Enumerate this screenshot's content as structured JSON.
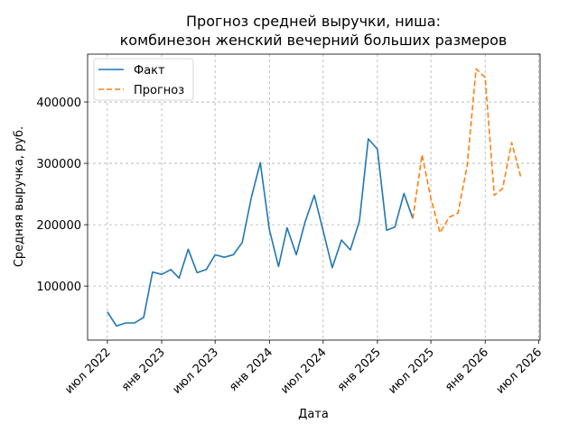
{
  "chart_data": {
    "type": "line",
    "title_line1": "Прогноз средней выручки, ниша:",
    "title_line2": "комбинезон женский вечерний больших размеров",
    "xlabel": "Дата",
    "ylabel": "Средняя выручка, руб.",
    "grid": true,
    "legend_position": "top-left",
    "x_ticks": [
      {
        "date": "2022-07-01",
        "label": "июл 2022"
      },
      {
        "date": "2023-01-01",
        "label": "янв 2023"
      },
      {
        "date": "2023-07-01",
        "label": "июл 2023"
      },
      {
        "date": "2024-01-01",
        "label": "янв 2024"
      },
      {
        "date": "2024-07-01",
        "label": "июл 2024"
      },
      {
        "date": "2025-01-01",
        "label": "янв 2025"
      },
      {
        "date": "2025-07-01",
        "label": "июл 2025"
      },
      {
        "date": "2026-01-01",
        "label": "янв 2026"
      },
      {
        "date": "2026-07-01",
        "label": "июл 2026"
      }
    ],
    "y_ticks": [
      {
        "value": 100000,
        "label": "100000"
      },
      {
        "value": 200000,
        "label": "200000"
      },
      {
        "value": 300000,
        "label": "300000"
      },
      {
        "value": 400000,
        "label": "400000"
      }
    ],
    "xlim": [
      "2022-04-25",
      "2026-07-06"
    ],
    "ylim": [
      12000,
      478000
    ],
    "series": [
      {
        "name": "Факт",
        "color": "#1f77b4",
        "style": "solid",
        "points": [
          {
            "date": "2022-07-01",
            "value": 58000
          },
          {
            "date": "2022-08-01",
            "value": 35000
          },
          {
            "date": "2022-09-01",
            "value": 40000
          },
          {
            "date": "2022-10-01",
            "value": 40000
          },
          {
            "date": "2022-11-01",
            "value": 49000
          },
          {
            "date": "2022-12-01",
            "value": 123000
          },
          {
            "date": "2023-01-01",
            "value": 119000
          },
          {
            "date": "2023-02-01",
            "value": 127000
          },
          {
            "date": "2023-03-01",
            "value": 113000
          },
          {
            "date": "2023-04-01",
            "value": 160000
          },
          {
            "date": "2023-05-01",
            "value": 122000
          },
          {
            "date": "2023-06-01",
            "value": 127000
          },
          {
            "date": "2023-07-01",
            "value": 151000
          },
          {
            "date": "2023-08-01",
            "value": 147000
          },
          {
            "date": "2023-09-01",
            "value": 151000
          },
          {
            "date": "2023-10-01",
            "value": 171000
          },
          {
            "date": "2023-11-01",
            "value": 245000
          },
          {
            "date": "2023-12-01",
            "value": 301000
          },
          {
            "date": "2024-01-01",
            "value": 192000
          },
          {
            "date": "2024-02-01",
            "value": 132000
          },
          {
            "date": "2024-03-01",
            "value": 195000
          },
          {
            "date": "2024-04-01",
            "value": 151000
          },
          {
            "date": "2024-05-01",
            "value": 205000
          },
          {
            "date": "2024-06-01",
            "value": 248000
          },
          {
            "date": "2024-07-01",
            "value": 190000
          },
          {
            "date": "2024-08-01",
            "value": 130000
          },
          {
            "date": "2024-09-01",
            "value": 175000
          },
          {
            "date": "2024-10-01",
            "value": 159000
          },
          {
            "date": "2024-11-01",
            "value": 206000
          },
          {
            "date": "2024-12-01",
            "value": 340000
          },
          {
            "date": "2025-01-01",
            "value": 323000
          },
          {
            "date": "2025-02-01",
            "value": 191000
          },
          {
            "date": "2025-03-01",
            "value": 196000
          },
          {
            "date": "2025-04-01",
            "value": 251000
          },
          {
            "date": "2025-05-01",
            "value": 210000
          }
        ]
      },
      {
        "name": "Прогноз",
        "color": "#ff7f0e",
        "style": "dashed",
        "points": [
          {
            "date": "2025-05-01",
            "value": 210000
          },
          {
            "date": "2025-06-01",
            "value": 314000
          },
          {
            "date": "2025-07-01",
            "value": 243000
          },
          {
            "date": "2025-08-01",
            "value": 187000
          },
          {
            "date": "2025-09-01",
            "value": 212000
          },
          {
            "date": "2025-10-01",
            "value": 219000
          },
          {
            "date": "2025-11-01",
            "value": 296000
          },
          {
            "date": "2025-12-01",
            "value": 454000
          },
          {
            "date": "2026-01-01",
            "value": 440000
          },
          {
            "date": "2026-02-01",
            "value": 248000
          },
          {
            "date": "2026-03-01",
            "value": 259000
          },
          {
            "date": "2026-04-01",
            "value": 334000
          },
          {
            "date": "2026-05-01",
            "value": 279000
          }
        ]
      }
    ]
  }
}
